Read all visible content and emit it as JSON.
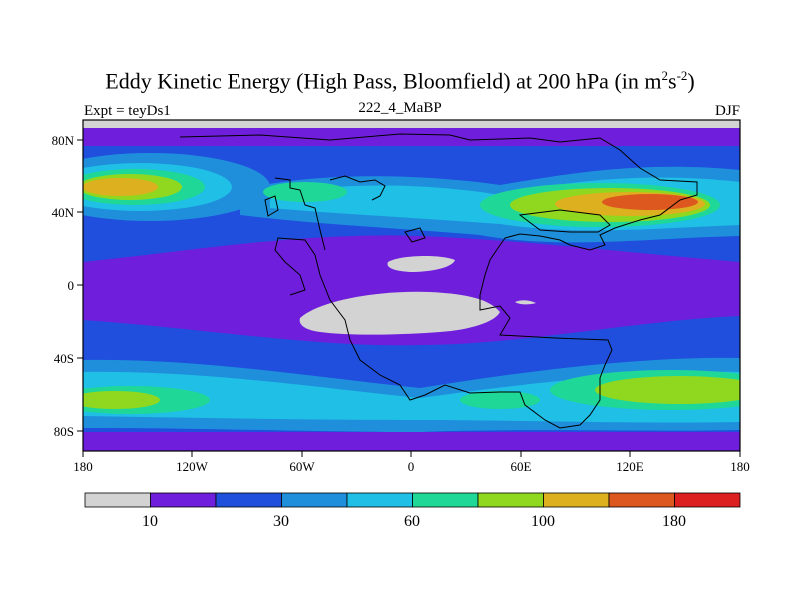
{
  "header": {
    "title_main": "Eddy Kinetic Energy (High Pass, Bloomfield) at 200 hPa (in m",
    "title_sup1": "2",
    "title_mid": "s",
    "title_sup2": "-2",
    "title_end": ")",
    "subtitle": "222_4_MaBP",
    "left_label": "Expt = teyDs1",
    "right_label": "DJF"
  },
  "map": {
    "lat_ticks": [
      "80N",
      "40N",
      "0",
      "40S",
      "80S"
    ],
    "lon_ticks": [
      "180",
      "120W",
      "60W",
      "0",
      "60E",
      "120E",
      "180"
    ]
  },
  "colorbar": {
    "colors": [
      "#d3d3d3",
      "#6f1fdc",
      "#1f4fdc",
      "#1f8fdc",
      "#1fbfe6",
      "#1fd898",
      "#90d81f",
      "#dcb01f",
      "#dc581f",
      "#dc1f1f"
    ],
    "labels": [
      "10",
      "30",
      "60",
      "100",
      "180"
    ]
  }
}
